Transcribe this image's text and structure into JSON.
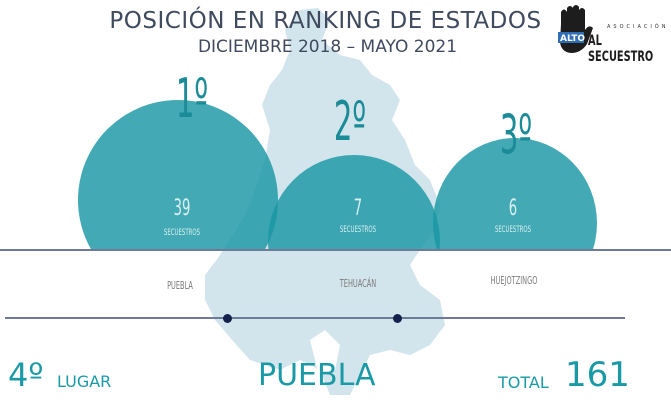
{
  "header": {
    "title": "POSICIÓN EN RANKING DE ESTADOS",
    "subtitle": "DICIEMBRE 2018 – MAYO 2021"
  },
  "logo": {
    "text_top": "ASOCIACIÓN",
    "text_alto": "ALTO",
    "text_main": "AL SECUESTRO",
    "icon": "hand-stop-icon"
  },
  "rankings": [
    {
      "rank": "1º",
      "count": "39",
      "unit": "SECUESTROS",
      "city": "PUEBLA"
    },
    {
      "rank": "2º",
      "count": "7",
      "unit": "SECUESTROS",
      "city": "TEHUACÁN"
    },
    {
      "rank": "3º",
      "count": "6",
      "unit": "SECUESTROS",
      "city": "HUEJOTZINGO"
    }
  ],
  "footer": {
    "place_number": "4º",
    "place_label": "LUGAR",
    "state": "PUEBLA",
    "total_label": "TOTAL",
    "total_value": "161"
  },
  "colors": {
    "circle": "#1a96a4",
    "title": "#3f4a5e",
    "map": "#cfe3ea",
    "dot": "#13224d"
  }
}
